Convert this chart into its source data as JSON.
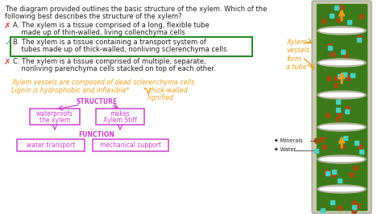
{
  "bg_color": "#ffffff",
  "question_line1": "The diagram provided outlines the basic structure of the xylem. Which of the",
  "question_line2": "following best describes the structure of the xylem?",
  "optA_line1": "A. The xylem is a tissue comprised of a long, flexible tube",
  "optA_line2": "    made up of thin-walled, living collenchyma cells",
  "optB_line1": "B. The xylem is a tissue containing a transport system of",
  "optB_line2": "    tubes made up of thick-walled, nonliving sclerenchyma cells.",
  "optC_line1": "C. The xylem is a tissue comprised of multiple, separate,",
  "optC_line2": "    nonliving parenchyma cells stacked on top of each other.",
  "cross_color": "#d94040",
  "tick_color": "#4a90d9",
  "text_color": "#222222",
  "orange_color": "#e8a020",
  "magenta_color": "#cc44cc",
  "box_green": "#2a8a2a",
  "note1": "Xylem vessels are composed of dead sclerenchyma cells",
  "note2": "Lignin is hydrophobic and inflexible*",
  "note3": "* thick-walled",
  "note4": "  lignified",
  "struct_label": "STRUCTURE",
  "func_label": "FUNCTION",
  "box1_line1": "waterproofs",
  "box1_line2": "the xylem",
  "box2_line1": "makes",
  "box2_line2": "Xylem Stiff",
  "func1": "water transport",
  "func2": "mechanical support",
  "xylem_label": "Xylem\nvessels\nform\na tube*",
  "minerals_label": "Minerals",
  "water_label": "Water",
  "xylem_dark_green": "#3d7a1a",
  "xylem_mid_green": "#4e8f22",
  "xylem_gray": "#b8b8a8",
  "xylem_brown": "#9b5010",
  "xylem_white": "#e8e8e0",
  "xylem_teal": "#48d0c0"
}
